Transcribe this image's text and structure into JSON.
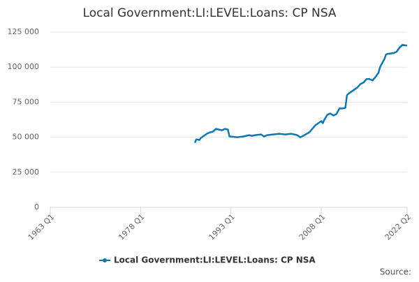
{
  "chart_data": {
    "type": "line",
    "title": "Local Government:LI:LEVEL:Loans: CP NSA",
    "source": "Source:",
    "x": [
      "1987 Q1",
      "1987 Q2",
      "1987 Q4",
      "1988 Q1",
      "1988 Q3",
      "1989 Q1",
      "1989 Q3",
      "1990 Q1",
      "1990 Q3",
      "1991 Q1",
      "1991 Q3",
      "1992 Q1",
      "1992 Q3",
      "1992 Q4",
      "1993 Q1",
      "1994 Q1",
      "1995 Q1",
      "1996 Q1",
      "1996 Q3",
      "1997 Q1",
      "1998 Q1",
      "1998 Q3",
      "1999 Q1",
      "2000 Q1",
      "2001 Q1",
      "2002 Q1",
      "2003 Q1",
      "2004 Q1",
      "2004 Q3",
      "2005 Q1",
      "2006 Q1",
      "2006 Q3",
      "2007 Q1",
      "2007 Q3",
      "2008 Q1",
      "2008 Q2",
      "2008 Q3",
      "2009 Q1",
      "2009 Q3",
      "2010 Q1",
      "2010 Q3",
      "2011 Q1",
      "2011 Q3",
      "2012 Q1",
      "2012 Q2",
      "2012 Q3",
      "2013 Q1",
      "2013 Q3",
      "2014 Q1",
      "2014 Q3",
      "2015 Q1",
      "2015 Q3",
      "2016 Q1",
      "2016 Q3",
      "2017 Q1",
      "2017 Q3",
      "2017 Q4",
      "2018 Q1",
      "2018 Q3",
      "2018 Q4",
      "2019 Q1",
      "2020 Q1",
      "2020 Q3",
      "2021 Q1",
      "2021 Q3",
      "2022 Q1",
      "2022 Q2"
    ],
    "series": [
      {
        "name": "Local Government:LI:LEVEL:Loans: CP NSA",
        "color": "#0f77b0",
        "values": [
          46000,
          48500,
          48000,
          49500,
          51000,
          52500,
          53500,
          54000,
          56000,
          55500,
          55000,
          56000,
          55500,
          50500,
          50500,
          50000,
          50500,
          51500,
          51000,
          51500,
          52000,
          50500,
          51500,
          52000,
          52500,
          52000,
          52500,
          51500,
          50000,
          51000,
          53500,
          56000,
          58500,
          60000,
          61500,
          60000,
          62500,
          66000,
          67000,
          65500,
          66500,
          70500,
          70500,
          71000,
          80000,
          81000,
          82500,
          84000,
          85500,
          88000,
          89000,
          91500,
          91500,
          90500,
          93000,
          96000,
          100000,
          102000,
          106000,
          109000,
          109500,
          110000,
          111000,
          114000,
          116000,
          115500,
          115500
        ]
      }
    ],
    "xlim": [
      "1963 Q1",
      "2022 Q2"
    ],
    "xticks": [
      "1963 Q1",
      "1978 Q1",
      "1993 Q1",
      "2008 Q1",
      "2022 Q2"
    ],
    "ylim": [
      0,
      125000
    ],
    "yticks": [
      0,
      {
        "value": 25000,
        "label": "25 000"
      },
      {
        "value": 50000,
        "label": "50 000"
      },
      {
        "value": 75000,
        "label": "75 000"
      },
      {
        "value": 100000,
        "label": "100 000"
      },
      {
        "value": 125000,
        "label": "125 000"
      }
    ],
    "grid": true
  }
}
